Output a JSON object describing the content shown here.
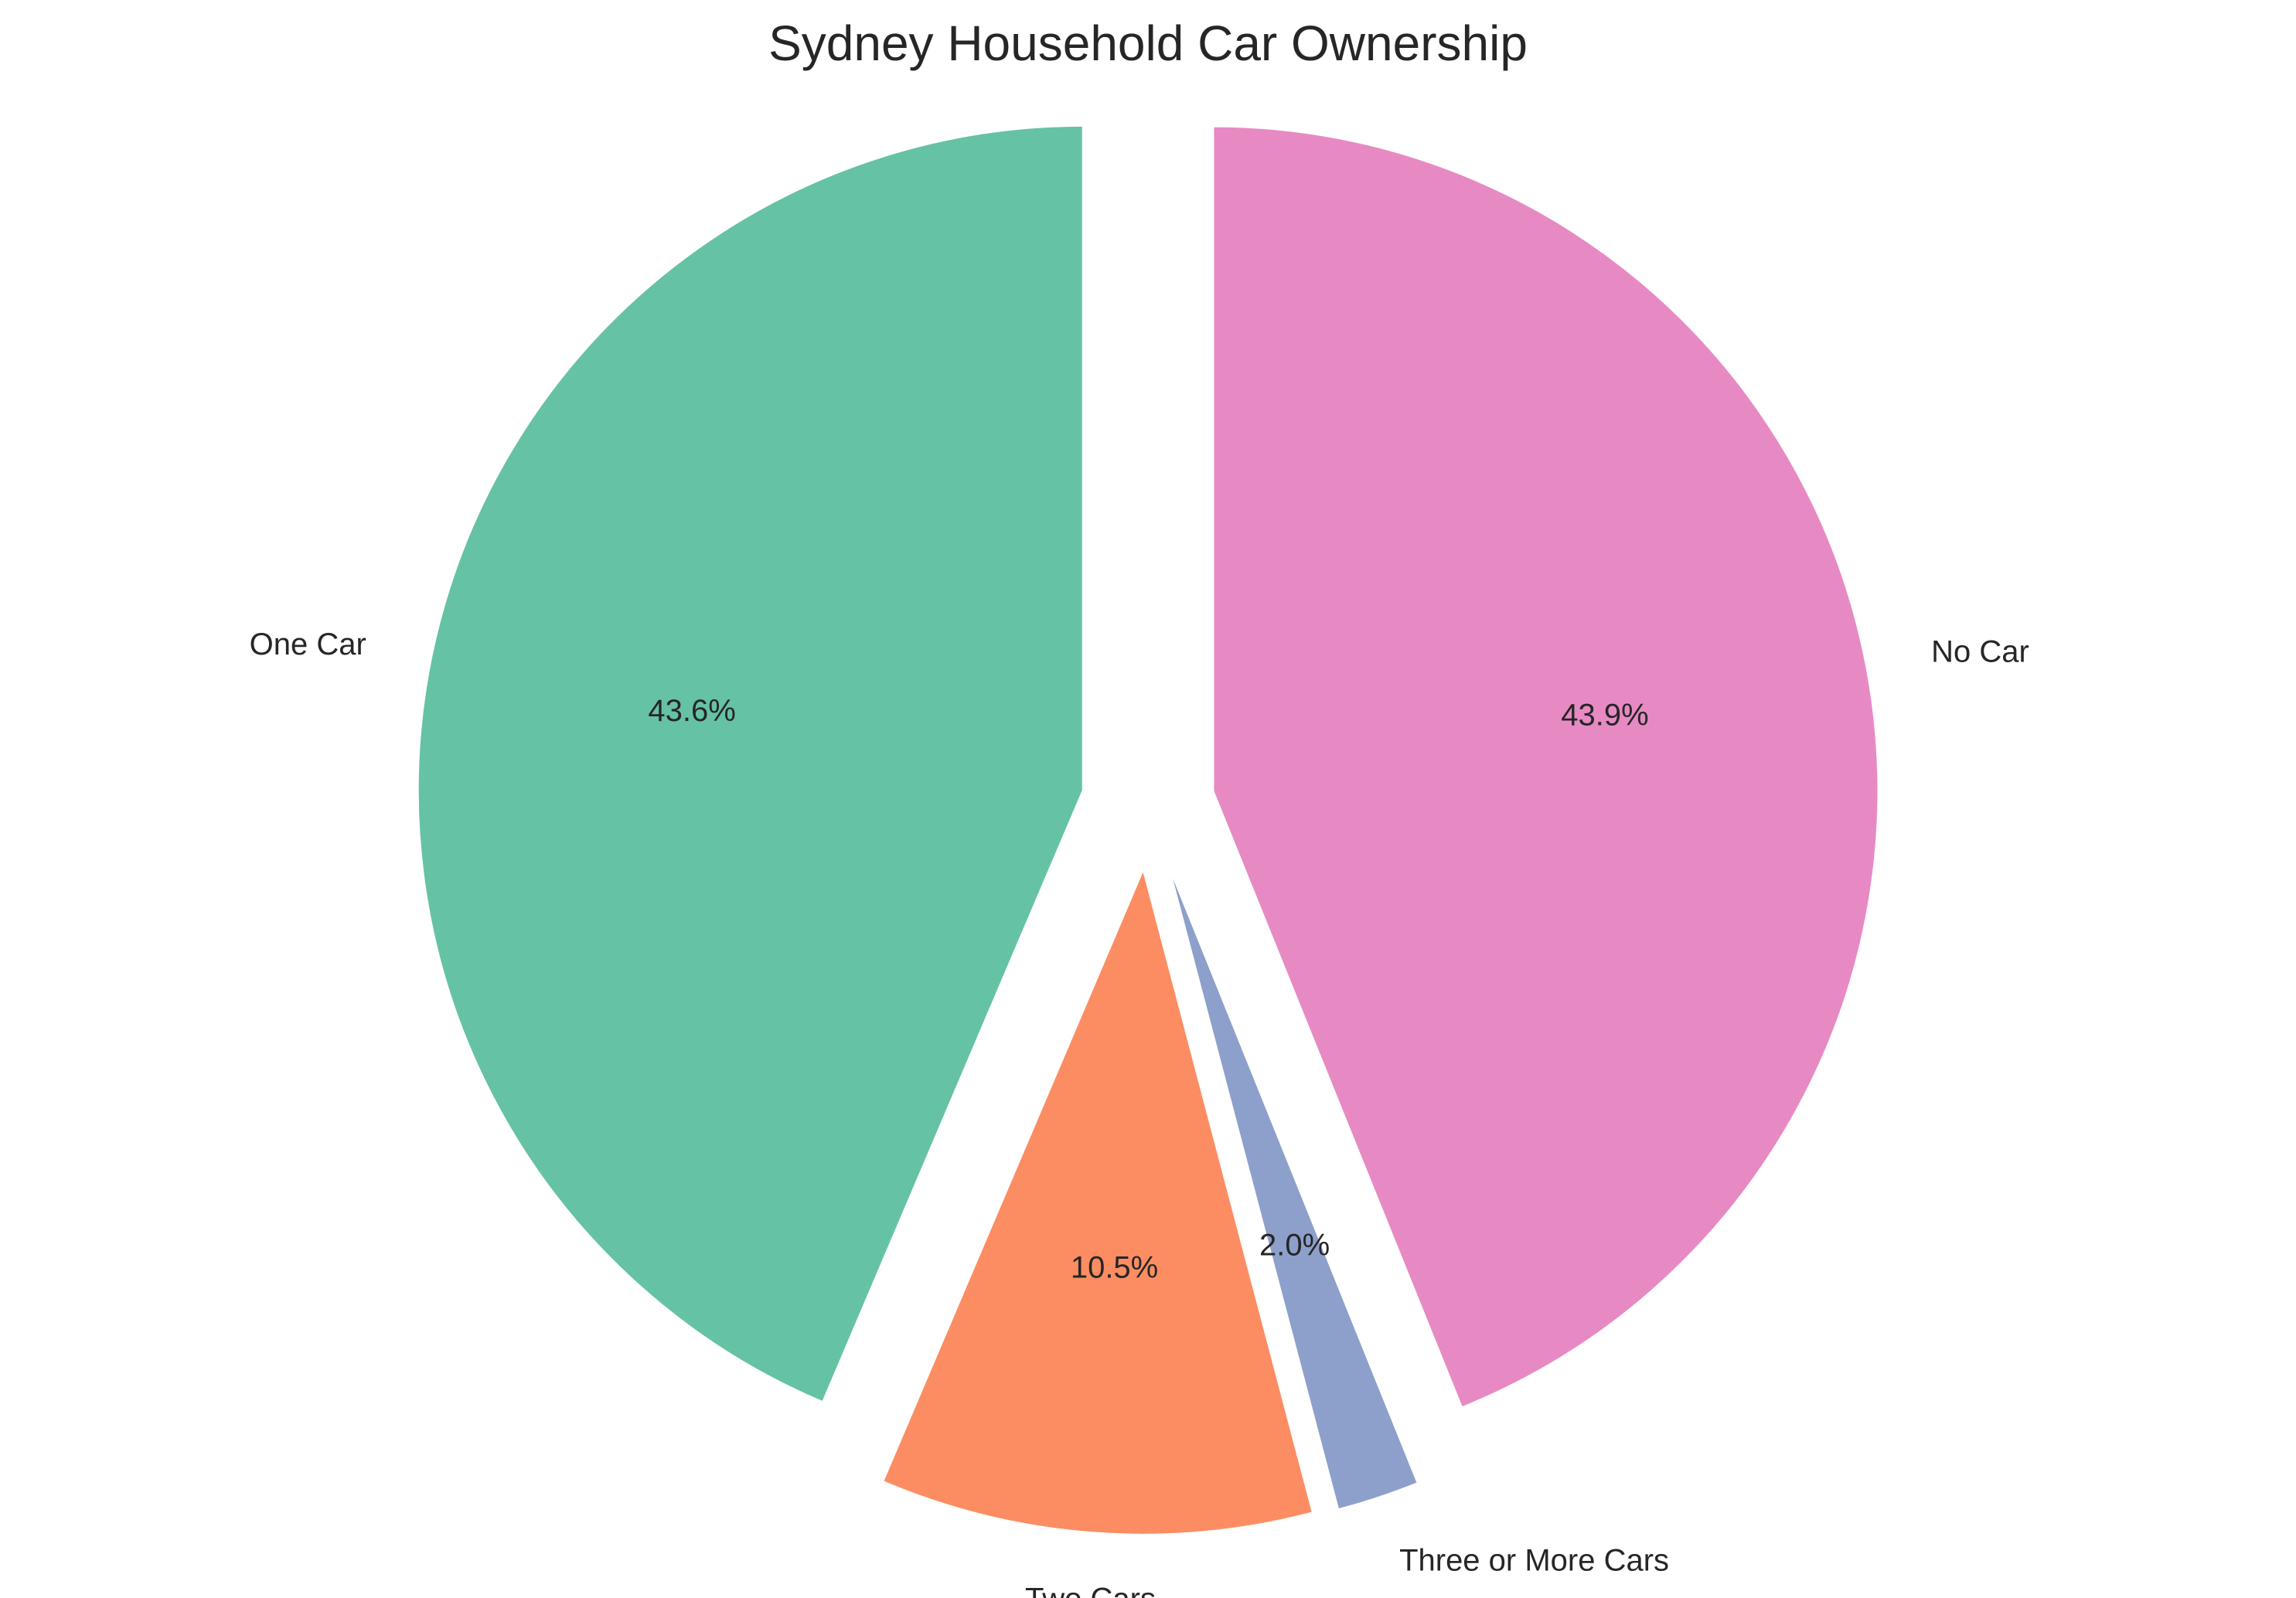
{
  "chart_data": {
    "type": "pie",
    "title": "Sydney Household Car Ownership",
    "slices": [
      {
        "label": "One Car",
        "value": 43.6,
        "pct_label": "43.6%",
        "color": "#66c2a5"
      },
      {
        "label": "Two Cars",
        "value": 10.5,
        "pct_label": "10.5%",
        "color": "#fc8d62"
      },
      {
        "label": "Three or More Cars",
        "value": 2.0,
        "pct_label": "2.0%",
        "color": "#8da0cb"
      },
      {
        "label": "No Car",
        "value": 43.9,
        "pct_label": "43.9%",
        "color": "#e78ac3"
      }
    ],
    "start_angle": "top",
    "direction": "counterclockwise",
    "exploded": true,
    "legend": "none"
  }
}
